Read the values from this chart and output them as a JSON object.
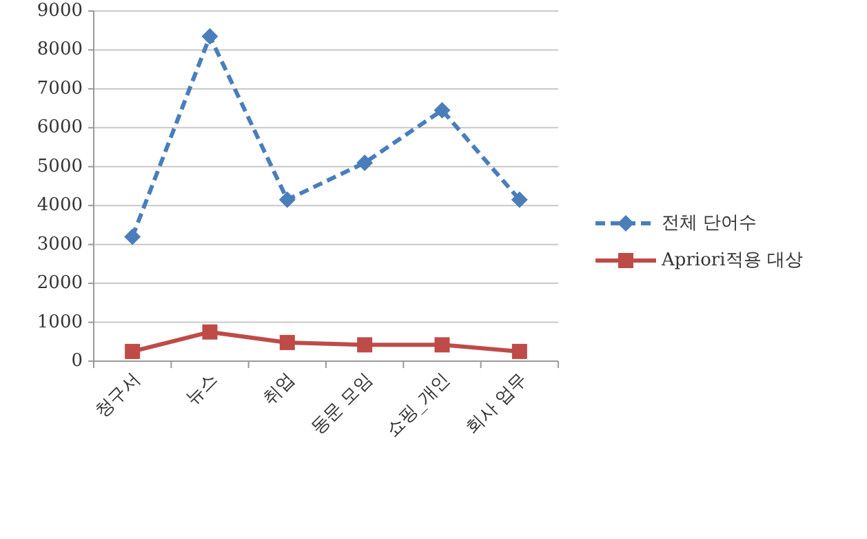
{
  "chart_data": {
    "type": "line",
    "categories": [
      "청구서",
      "뉴스",
      "취업",
      "동문 모임",
      "쇼핑_개인",
      "회사 업무"
    ],
    "series": [
      {
        "name": "전체 단어수",
        "color": "#4a7ebb",
        "values": [
          3200,
          8350,
          4150,
          5100,
          6450,
          4150
        ],
        "marker": "diamond",
        "line_style": "dashed"
      },
      {
        "name": "Apriori적용 대상",
        "color": "#be4b48",
        "values": [
          250,
          750,
          480,
          420,
          420,
          250
        ],
        "marker": "square",
        "line_style": "solid"
      }
    ],
    "ylim": [
      0,
      9000
    ],
    "yticks": [
      0,
      1000,
      2000,
      3000,
      4000,
      5000,
      6000,
      7000,
      8000,
      9000
    ],
    "grid": "y",
    "legend": "right"
  }
}
